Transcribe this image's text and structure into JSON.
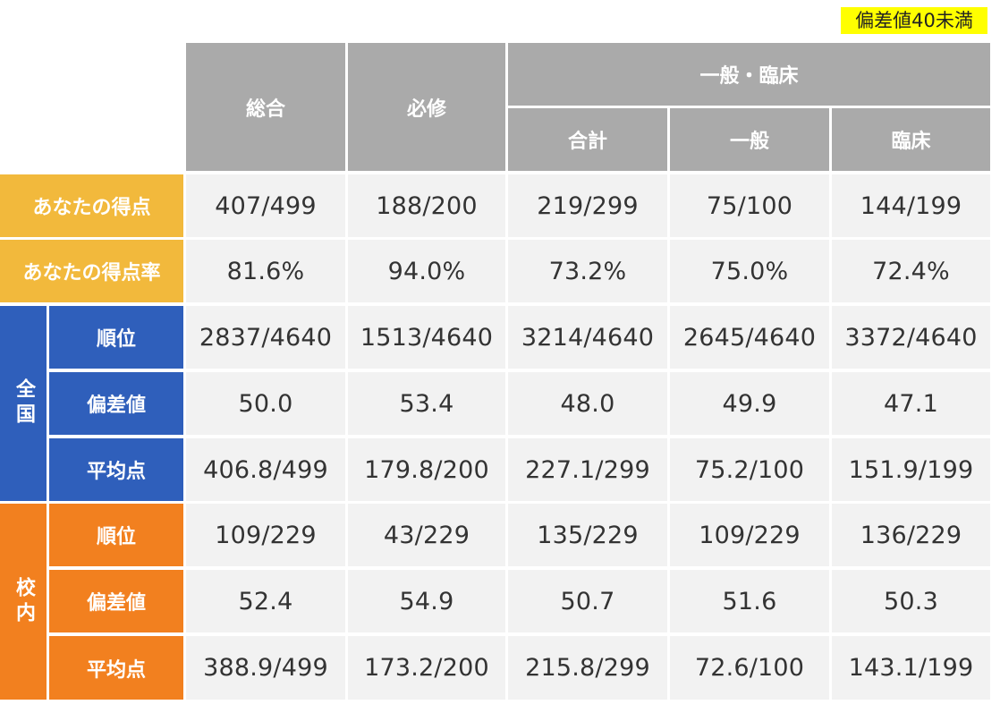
{
  "legend": {
    "label": "偏差値40未満",
    "color": "#ffff00"
  },
  "headers": {
    "sogo": "総合",
    "hisshu": "必修",
    "ippan_rinsho": "一般・臨床",
    "gokei": "合計",
    "ippan": "一般",
    "rinsho": "臨床"
  },
  "row_labels": {
    "score": "あなたの得点",
    "rate": "あなたの得点率",
    "zenkoku": "全国",
    "kounai": "校内",
    "rank": "順位",
    "hensachi": "偏差値",
    "average": "平均点"
  },
  "colors": {
    "header_gray": "#aaaaaa",
    "yellow": "#f2b93c",
    "blue": "#2f5fbb",
    "orange": "#f2801f",
    "cell_bg": "#f2f2f2"
  },
  "rows": {
    "score": [
      "407/499",
      "188/200",
      "219/299",
      "75/100",
      "144/199"
    ],
    "rate": [
      "81.6%",
      "94.0%",
      "73.2%",
      "75.0%",
      "72.4%"
    ],
    "zenkoku_rank": [
      "2837/4640",
      "1513/4640",
      "3214/4640",
      "2645/4640",
      "3372/4640"
    ],
    "zenkoku_hensachi": [
      "50.0",
      "53.4",
      "48.0",
      "49.9",
      "47.1"
    ],
    "zenkoku_average": [
      "406.8/499",
      "179.8/200",
      "227.1/299",
      "75.2/100",
      "151.9/199"
    ],
    "kounai_rank": [
      "109/229",
      "43/229",
      "135/229",
      "109/229",
      "136/229"
    ],
    "kounai_hensachi": [
      "52.4",
      "54.9",
      "50.7",
      "51.6",
      "50.3"
    ],
    "kounai_average": [
      "388.9/499",
      "173.2/200",
      "215.8/299",
      "72.6/100",
      "143.1/199"
    ]
  }
}
